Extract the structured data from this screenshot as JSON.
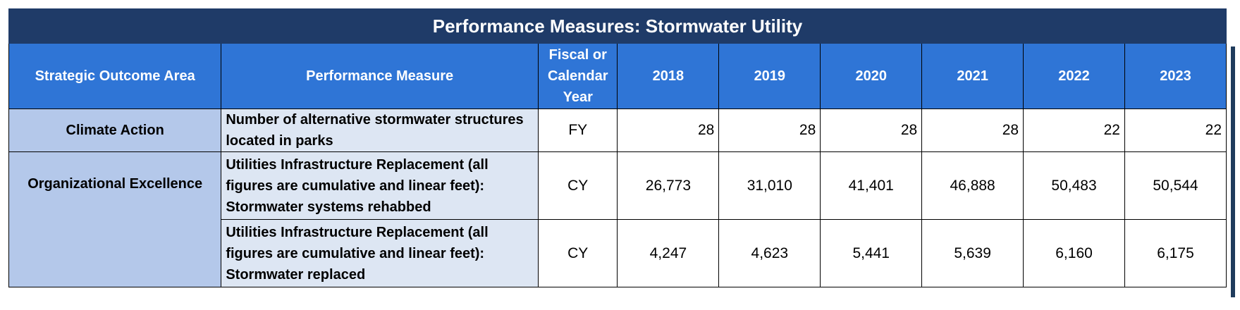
{
  "title": "Performance Measures:  Stormwater Utility",
  "headers": {
    "area": "Strategic Outcome Area",
    "measure": "Performance Measure",
    "period": "Fiscal or Calendar Year",
    "years": [
      "2018",
      "2019",
      "2020",
      "2021",
      "2022",
      "2023"
    ]
  },
  "rows": [
    {
      "area": "Climate Action",
      "measure": "Number of alternative stormwater structures located in parks",
      "period": "FY",
      "values": [
        "28",
        "28",
        "28",
        "28",
        "22",
        "22"
      ]
    },
    {
      "area": "Organizational Excellence",
      "measure": "Utilities Infrastructure Replacement (all figures are cumulative and linear feet): Stormwater systems rehabbed",
      "period": "CY",
      "values": [
        "26,773",
        "31,010",
        "41,401",
        "46,888",
        "50,483",
        "50,544"
      ]
    },
    {
      "area": "",
      "measure": "Utilities Infrastructure Replacement (all figures are cumulative and linear feet): Stormwater replaced",
      "period": "CY",
      "values": [
        "4,247",
        "4,623",
        "5,441",
        "5,639",
        "6,160",
        "6,175"
      ]
    }
  ]
}
